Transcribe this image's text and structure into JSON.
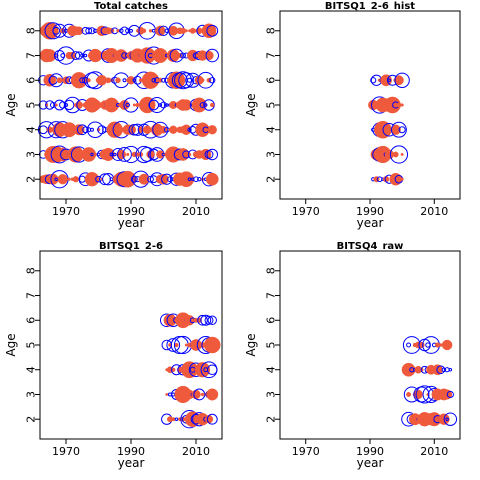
{
  "colors": {
    "filled": "#F05A3C",
    "open": "#0000FF",
    "frame": "#000000"
  },
  "chart_data": [
    {
      "type": "scatter",
      "title": "Total catches",
      "xlabel": "year",
      "ylabel": "Age",
      "xlim": [
        1962,
        2018
      ],
      "ylim": [
        1.2,
        8.8
      ],
      "xticks": [
        1970,
        1990,
        2010
      ],
      "yticks": [
        2,
        3,
        4,
        5,
        6,
        7,
        8
      ],
      "years": [
        1963,
        2015
      ],
      "ages": [
        2,
        3,
        4,
        5,
        6,
        7,
        8
      ],
      "encoding": "bubble size = magnitude of standardized residual; filled red = positive, open blue = negative"
    },
    {
      "type": "scatter",
      "title": "BITSQ1_2-6_hist",
      "xlabel": "year",
      "ylabel": "Age",
      "xlim": [
        1962,
        2018
      ],
      "ylim": [
        1.2,
        8.8
      ],
      "xticks": [
        1970,
        1990,
        2010
      ],
      "yticks": [
        2,
        3,
        4,
        5,
        6,
        7,
        8
      ],
      "years": [
        1991,
        2000
      ],
      "ages": [
        2,
        3,
        4,
        5,
        6
      ],
      "encoding": "bubble size = magnitude of standardized residual; filled red = positive, open blue = negative"
    },
    {
      "type": "scatter",
      "title": "BITSQ1_2-6",
      "xlabel": "year",
      "ylabel": "Age",
      "xlim": [
        1962,
        2018
      ],
      "ylim": [
        1.2,
        8.8
      ],
      "xticks": [
        1970,
        1990,
        2010
      ],
      "yticks": [
        2,
        3,
        4,
        5,
        6,
        7,
        8
      ],
      "years": [
        2001,
        2015
      ],
      "ages": [
        2,
        3,
        4,
        5,
        6
      ],
      "encoding": "bubble size = magnitude of standardized residual; filled red = positive, open blue = negative"
    },
    {
      "type": "scatter",
      "title": "BITSQ4_raw",
      "xlabel": "year",
      "ylabel": "Age",
      "xlim": [
        1962,
        2018
      ],
      "ylim": [
        1.2,
        8.8
      ],
      "xticks": [
        1970,
        1990,
        2010
      ],
      "yticks": [
        2,
        3,
        4,
        5,
        6,
        7,
        8
      ],
      "years": [
        2002,
        2015
      ],
      "ages": [
        2,
        3,
        4,
        5
      ],
      "encoding": "bubble size = magnitude of standardized residual; filled red = positive, open blue = negative"
    }
  ]
}
